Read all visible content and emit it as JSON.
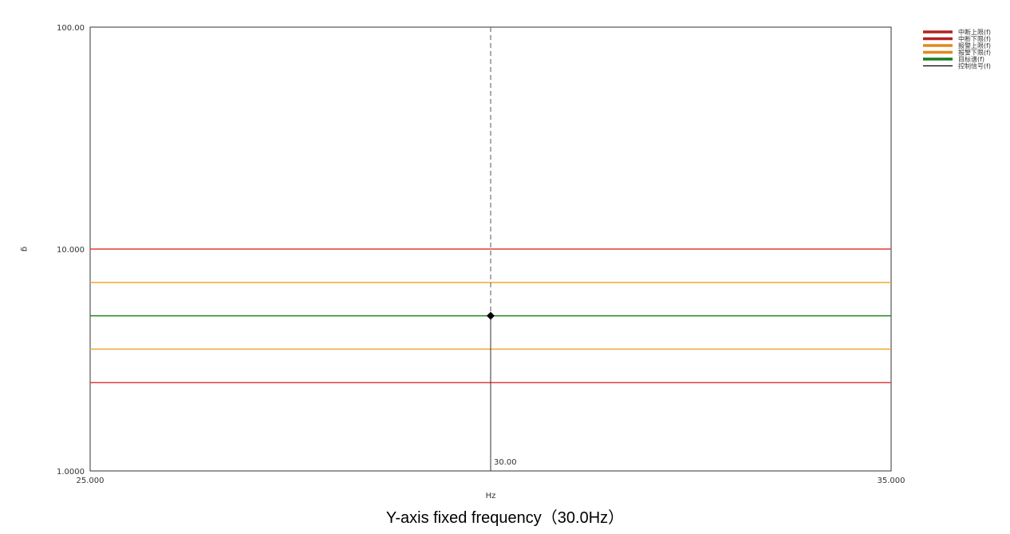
{
  "chart_data": {
    "type": "line",
    "xlabel": "Hz",
    "ylabel": "g",
    "xlim": [
      25,
      35
    ],
    "ylim": [
      1,
      100
    ],
    "yscale": "log",
    "x_tick_labels": [
      "25.000",
      "35.000"
    ],
    "y_tick_labels": [
      "1.0000",
      "10.000",
      "100.00"
    ],
    "y_tick_values": [
      1,
      10,
      100
    ],
    "grid": false,
    "legend_position": "top-right",
    "cursor": {
      "x": 30,
      "label": "30.00",
      "marker_y": 5
    },
    "series": [
      {
        "name": "中断上限(f)",
        "color": "#e03c3c",
        "y": 10
      },
      {
        "name": "中断下限(f)",
        "color": "#e03c3c",
        "y": 2.5
      },
      {
        "name": "报警上限(f)",
        "color": "#f0a830",
        "y": 7.07
      },
      {
        "name": "报警下限(f)",
        "color": "#f0a830",
        "y": 3.54
      },
      {
        "name": "目标谱(f)",
        "color": "#1e8a1e",
        "y": 5
      },
      {
        "name": "控制信号(f)",
        "color": "#000000",
        "y": 5
      }
    ],
    "legend_colors": [
      "#b22222",
      "#b22222",
      "#e08a1e",
      "#e08a1e",
      "#1e7a1e",
      "#000000"
    ]
  },
  "caption": "Y-axis fixed frequency（30.0Hz）"
}
